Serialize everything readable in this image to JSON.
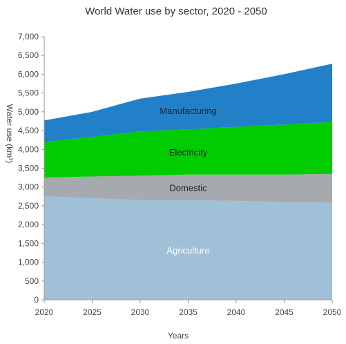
{
  "chart_data": {
    "type": "area",
    "stacked": true,
    "title": "World Water use by sector, 2020 - 2050",
    "xlabel": "Years",
    "ylabel": "Water use (km³)",
    "x": [
      2020,
      2025,
      2030,
      2035,
      2040,
      2045,
      2050
    ],
    "xlim": [
      2020,
      2050
    ],
    "ylim": [
      0,
      7000
    ],
    "y_ticks": [
      0,
      500,
      1000,
      1500,
      2000,
      2500,
      3000,
      3500,
      4000,
      4500,
      5000,
      5500,
      6000,
      6500,
      7000
    ],
    "y_tick_labels": [
      "0",
      "500",
      "1,000",
      "1,500",
      "2,000",
      "2,500",
      "3,000",
      "3,500",
      "4,000",
      "4,500",
      "5,000",
      "5,500",
      "6,000",
      "6,500",
      "7,000"
    ],
    "grid": false,
    "legend": "none",
    "series": [
      {
        "name": "Agriculture",
        "color": "#a0c0d8",
        "label_color": "#ffffff",
        "values": [
          2750,
          2700,
          2650,
          2650,
          2630,
          2600,
          2580
        ]
      },
      {
        "name": "Domestic",
        "color": "#a6aaae",
        "label_color": "#222222",
        "values": [
          500,
          580,
          650,
          680,
          700,
          730,
          770
        ]
      },
      {
        "name": "Electricity",
        "color": "#00cc00",
        "label_color": "#222222",
        "values": [
          950,
          1050,
          1180,
          1200,
          1270,
          1330,
          1380
        ]
      },
      {
        "name": "Manufacturing",
        "color": "#2280c8",
        "label_color": "#222222",
        "values": [
          570,
          670,
          870,
          1000,
          1150,
          1340,
          1550
        ]
      }
    ]
  }
}
